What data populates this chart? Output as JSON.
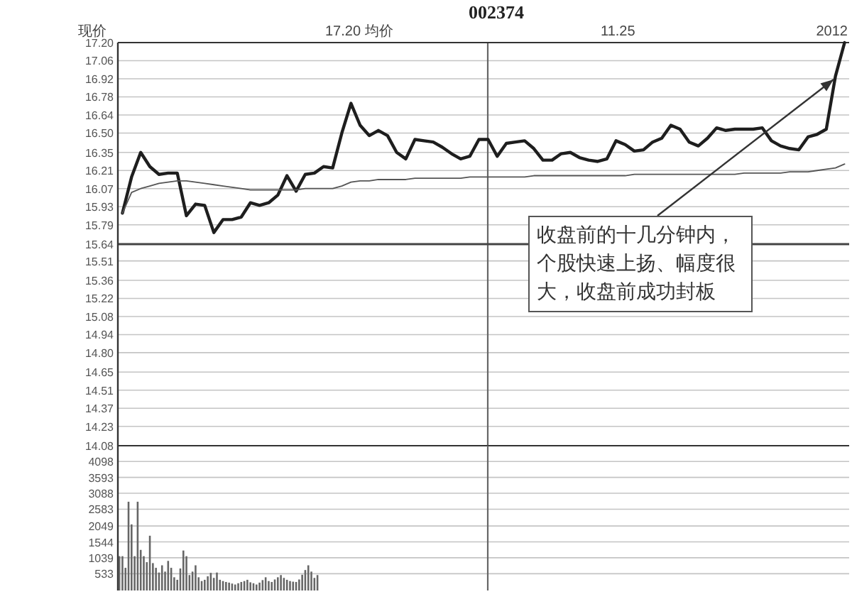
{
  "chart_data": [
    {
      "type": "line",
      "title": "002374",
      "annotations": [
        "现价",
        "17.20 均价",
        "11.25",
        "2012",
        "收盘前的十几分钟内，个股快速上扬、幅度很大，收盘前成功封板"
      ],
      "categories": [
        null,
        null,
        null,
        null,
        null,
        null,
        null,
        null,
        null,
        null,
        null,
        null,
        null,
        null,
        null,
        null,
        null,
        null,
        null,
        null,
        null,
        null,
        null,
        null,
        null,
        null,
        null,
        null,
        null,
        null,
        null,
        null,
        null,
        null,
        null,
        null,
        null,
        null,
        null,
        null,
        null,
        null,
        null,
        null,
        null,
        null,
        null,
        null,
        null,
        null,
        null,
        null,
        null,
        null,
        null,
        null,
        null,
        null,
        null,
        null,
        null,
        null,
        null,
        null,
        null,
        null,
        null,
        null,
        null,
        null,
        null,
        null,
        null,
        null,
        null,
        null,
        null,
        null,
        null,
        null
      ],
      "ylim": [
        14.08,
        17.2
      ],
      "yticks": [
        {
          "value": 17.2,
          "label": "17.20"
        },
        17.06,
        16.92,
        16.78,
        16.64,
        {
          "value": 16.5,
          "label": "16.50"
        },
        16.35,
        16.21,
        16.07,
        15.93,
        15.79,
        15.64,
        15.51,
        15.36,
        15.22,
        15.08,
        14.94,
        {
          "value": 14.8,
          "label": "14.80"
        },
        14.65,
        14.51,
        14.37,
        14.23,
        14.08
      ],
      "grid": "y",
      "ref_lines": [
        {
          "axis": "y",
          "value": 15.64,
          "color": "#444444"
        }
      ],
      "series": [
        {
          "color": "#1e1e1e",
          "values": [
            15.88,
            16.16,
            16.35,
            16.24,
            16.18,
            16.19,
            16.19,
            15.86,
            15.95,
            15.94,
            15.73,
            15.83,
            15.83,
            15.85,
            15.96,
            15.94,
            15.96,
            16.02,
            16.17,
            16.05,
            16.18,
            16.19,
            16.24,
            16.23,
            16.5,
            16.73,
            16.56,
            16.48,
            16.52,
            16.48,
            16.35,
            16.3,
            16.45,
            16.44,
            16.43,
            16.39,
            16.34,
            16.3,
            16.32,
            16.45,
            16.45,
            16.32,
            16.42,
            16.43,
            16.44,
            16.38,
            16.29,
            16.29,
            16.34,
            16.35,
            16.31,
            16.29,
            16.28,
            16.3,
            16.44,
            16.41,
            16.36,
            16.37,
            16.43,
            16.46,
            16.56,
            16.53,
            16.43,
            16.4,
            16.46,
            16.54,
            16.52,
            16.53,
            16.53,
            16.53,
            16.54,
            16.44,
            16.4,
            16.38,
            16.37,
            16.47,
            16.49,
            16.53,
            16.94,
            17.2
          ]
        },
        {
          "color": "#555555",
          "values": [
            15.88,
            16.04,
            16.07,
            16.09,
            16.11,
            16.12,
            16.13,
            16.13,
            16.12,
            16.11,
            16.1,
            16.09,
            16.08,
            16.07,
            16.06,
            16.06,
            16.06,
            16.06,
            16.06,
            16.06,
            16.07,
            16.07,
            16.07,
            16.07,
            16.09,
            16.12,
            16.13,
            16.13,
            16.14,
            16.14,
            16.14,
            16.14,
            16.15,
            16.15,
            16.15,
            16.15,
            16.15,
            16.15,
            16.16,
            16.16,
            16.16,
            16.16,
            16.16,
            16.16,
            16.16,
            16.17,
            16.17,
            16.17,
            16.17,
            16.17,
            16.17,
            16.17,
            16.17,
            16.17,
            16.17,
            16.17,
            16.18,
            16.18,
            16.18,
            16.18,
            16.18,
            16.18,
            16.18,
            16.18,
            16.18,
            16.18,
            16.18,
            16.18,
            16.19,
            16.19,
            16.19,
            16.19,
            16.19,
            16.2,
            16.2,
            16.2,
            16.21,
            16.22,
            16.23,
            16.26
          ]
        }
      ]
    },
    {
      "type": "bar",
      "categories": [
        null,
        null,
        null,
        null,
        null,
        null,
        null,
        null,
        null,
        null,
        null,
        null,
        null,
        null,
        null,
        null,
        null,
        null,
        null,
        null,
        null,
        null,
        null,
        null,
        null,
        null,
        null,
        null,
        null,
        null,
        null,
        null,
        null,
        null,
        null,
        null,
        null,
        null,
        null,
        null,
        null,
        null,
        null,
        null,
        null,
        null,
        null,
        null,
        null,
        null,
        null,
        null,
        null,
        null,
        null,
        null,
        null,
        null,
        null,
        null,
        null,
        null,
        null,
        null,
        null,
        null,
        null,
        null,
        null,
        null,
        null,
        null,
        null,
        null,
        null,
        null,
        null,
        null,
        null,
        null,
        null,
        null,
        null,
        null,
        null,
        null,
        null,
        null,
        null,
        null,
        null,
        null,
        null,
        null,
        null,
        null,
        null,
        null,
        null,
        null,
        null,
        null,
        null,
        null,
        null,
        null,
        null,
        null,
        null,
        null,
        null,
        null,
        null,
        null,
        null,
        null,
        null,
        null,
        null,
        null,
        null,
        null,
        null,
        null,
        null,
        null,
        null,
        null,
        null,
        null,
        null,
        null,
        null,
        null,
        null,
        null,
        null,
        null,
        null,
        null,
        null,
        null,
        null,
        null,
        null,
        null,
        null,
        null,
        null,
        null,
        null,
        null,
        null,
        null,
        null,
        null,
        null,
        null,
        null,
        null,
        null,
        null,
        null,
        null,
        null,
        null,
        null,
        null,
        null,
        null,
        null,
        null,
        null,
        null,
        null,
        null,
        null,
        null,
        null,
        null,
        null,
        null,
        null,
        null,
        null,
        null,
        null,
        null,
        null,
        null,
        null,
        null,
        null,
        null,
        null,
        null,
        null,
        null,
        null,
        null,
        null,
        null,
        null,
        null,
        null,
        null,
        null,
        null,
        null,
        null,
        null,
        null,
        null,
        null,
        null,
        null,
        null,
        null,
        null,
        null,
        null,
        null,
        null,
        null,
        null,
        null,
        null,
        null,
        null,
        null,
        null,
        null,
        null,
        null,
        null,
        null,
        null,
        null,
        null,
        null
      ],
      "ylim": [
        0,
        4600
      ],
      "yticks": [
        4098,
        3593,
        3088,
        2583,
        2049,
        1544,
        1039,
        533
      ],
      "grid": "y",
      "color": "#666666",
      "values": [
        1090,
        1090,
        720,
        2820,
        2100,
        1090,
        2820,
        1290,
        1090,
        900,
        1740,
        870,
        720,
        570,
        800,
        600,
        940,
        720,
        420,
        340,
        700,
        1270,
        1090,
        490,
        600,
        800,
        420,
        300,
        340,
        450,
        560,
        400,
        570,
        340,
        300,
        270,
        250,
        220,
        190,
        230,
        270,
        300,
        340,
        260,
        230,
        190,
        250,
        330,
        420,
        300,
        270,
        350,
        420,
        490,
        400,
        340,
        300,
        280,
        270,
        350,
        500,
        650,
        800,
        600,
        400,
        490,
        null,
        null,
        null,
        null,
        null,
        null,
        null,
        null,
        null,
        null,
        null,
        null,
        null,
        null,
        null,
        null,
        null,
        null,
        null,
        null,
        null,
        null,
        null,
        null,
        null,
        null,
        null,
        null,
        null,
        null,
        null,
        null,
        null,
        null,
        null,
        null,
        null,
        null,
        null,
        null,
        null,
        null,
        null,
        null,
        null,
        null,
        null,
        null,
        null,
        null,
        null,
        null,
        null,
        null,
        null,
        null,
        null,
        null,
        null,
        null,
        null,
        null,
        null,
        null,
        null,
        null,
        null,
        null,
        null,
        null,
        null,
        null,
        null,
        null,
        null,
        null,
        null,
        null,
        null,
        null,
        null,
        null,
        null,
        null,
        null,
        null,
        null,
        null,
        null,
        null,
        null,
        null,
        null,
        null,
        null,
        null,
        null,
        null,
        null,
        null,
        null,
        null,
        null,
        null,
        null,
        null,
        null,
        null,
        null,
        null,
        null,
        null,
        null,
        null,
        null,
        null,
        null,
        null,
        null,
        null,
        null,
        null,
        null,
        null,
        null,
        null,
        null,
        null,
        null,
        null,
        null,
        null,
        null,
        null,
        null,
        null,
        null,
        null,
        null,
        null,
        null,
        null,
        null,
        null,
        null,
        null,
        null,
        null,
        null,
        null,
        null,
        null,
        null,
        null,
        null,
        null,
        null,
        null,
        null,
        null,
        null,
        null,
        null,
        null,
        null,
        null,
        null,
        null,
        null,
        null,
        null,
        null,
        null,
        null
      ]
    }
  ]
}
